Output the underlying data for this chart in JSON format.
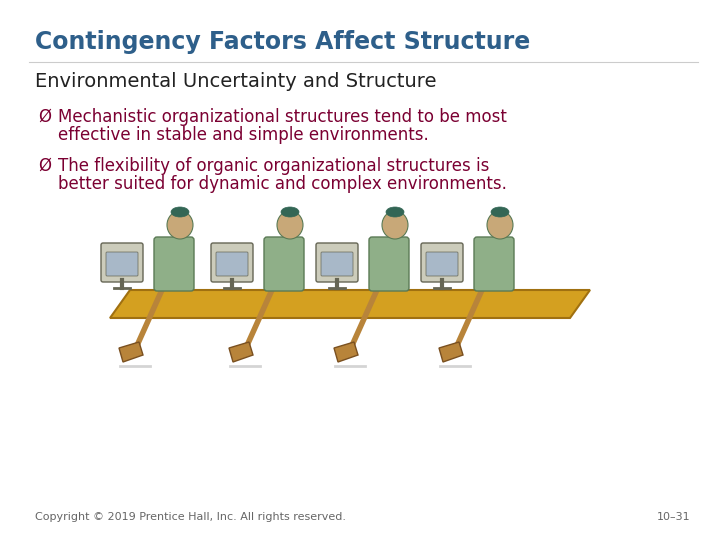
{
  "title": "Contingency Factors Affect Structure",
  "title_color": "#2E5F8A",
  "title_fontsize": 17,
  "subtitle": "Environmental Uncertainty and Structure",
  "subtitle_color": "#222222",
  "subtitle_fontsize": 14,
  "bullet_symbol": "Ø",
  "bullet1_line1": "Mechanistic organizational structures tend to be most",
  "bullet1_line2": "effective in stable and simple environments.",
  "bullet2_line1": "The flexibility of organic organizational structures is",
  "bullet2_line2": "better suited for dynamic and complex environments.",
  "bullet_color": "#7B0032",
  "bullet_fontsize": 12,
  "footer_left": "Copyright © 2019 Prentice Hall, Inc. All rights reserved.",
  "footer_right": "10–31",
  "footer_color": "#666666",
  "footer_fontsize": 8,
  "bg_color": "#FFFFFF",
  "boat_color": "#D4A020",
  "boat_edge": "#A07010",
  "figure_color": "#8FAF88",
  "figure_edge": "#5A7A55",
  "skin_color": "#C8A878",
  "hair_color": "#336655",
  "monitor_face": "#CCCCBB",
  "monitor_edge": "#666655",
  "paddle_color": "#B8843A",
  "paddle_edge": "#7A5020"
}
